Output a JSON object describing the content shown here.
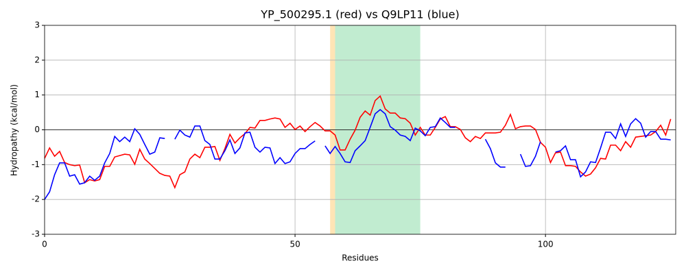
{
  "chart_data": {
    "type": "line",
    "title": "YP_500295.1 (red) vs Q9LP11 (blue)",
    "x_label": "Residues",
    "y_label": "Hydropathy (kcal/mol)",
    "x": [
      0,
      1,
      2,
      3,
      4,
      5,
      6,
      7,
      8,
      9,
      10,
      11,
      12,
      13,
      14,
      15,
      16,
      17,
      18,
      19,
      20,
      21,
      22,
      23,
      24,
      25,
      26,
      27,
      28,
      29,
      30,
      31,
      32,
      33,
      34,
      35,
      36,
      37,
      38,
      39,
      40,
      41,
      42,
      43,
      44,
      45,
      46,
      47,
      48,
      49,
      50,
      51,
      52,
      53,
      54,
      55,
      56,
      57,
      58,
      59,
      60,
      61,
      62,
      63,
      64,
      65,
      66,
      67,
      68,
      69,
      70,
      71,
      72,
      73,
      74,
      75,
      76,
      77,
      78,
      79,
      80,
      81,
      82,
      83,
      84,
      85,
      86,
      87,
      88,
      89,
      90,
      91,
      92,
      93,
      94,
      95,
      96,
      97,
      98,
      99,
      100,
      101,
      102,
      103,
      104,
      105,
      106,
      107,
      108,
      109,
      110,
      111,
      112,
      113,
      114,
      115,
      116,
      117,
      118,
      119,
      120,
      121,
      122,
      123,
      124,
      125
    ],
    "series": [
      {
        "color": "#ff0000",
        "values": [
          -0.82,
          -0.52,
          -0.76,
          -0.62,
          -0.94,
          -1.0,
          -1.03,
          -1.01,
          -1.52,
          -1.43,
          -1.47,
          -1.43,
          -1.05,
          -1.05,
          -0.78,
          -0.74,
          -0.7,
          -0.72,
          -0.99,
          -0.56,
          -0.84,
          -0.97,
          -1.11,
          -1.25,
          -1.31,
          -1.33,
          -1.66,
          -1.29,
          -1.21,
          -0.84,
          -0.7,
          -0.8,
          -0.5,
          -0.5,
          -0.48,
          -0.88,
          -0.54,
          -0.13,
          -0.38,
          -0.23,
          -0.11,
          0.07,
          0.05,
          0.27,
          0.27,
          0.31,
          0.34,
          0.31,
          0.07,
          0.19,
          0.01,
          0.11,
          -0.05,
          0.09,
          0.21,
          0.11,
          -0.03,
          -0.03,
          -0.15,
          -0.58,
          -0.58,
          -0.27,
          -0.01,
          0.36,
          0.54,
          0.42,
          0.84,
          0.97,
          0.6,
          0.48,
          0.48,
          0.34,
          0.32,
          0.19,
          -0.15,
          0.07,
          -0.15,
          -0.15,
          0.07,
          0.31,
          0.38,
          0.09,
          0.09,
          0.01,
          -0.23,
          -0.34,
          -0.19,
          -0.25,
          -0.09,
          -0.09,
          -0.09,
          -0.07,
          0.13,
          0.44,
          0.03,
          0.09,
          0.11,
          0.11,
          0.01,
          -0.36,
          -0.5,
          -0.94,
          -0.66,
          -0.64,
          -1.03,
          -1.03,
          -1.05,
          -1.21,
          -1.33,
          -1.27,
          -1.09,
          -0.82,
          -0.84,
          -0.44,
          -0.44,
          -0.6,
          -0.34,
          -0.5,
          -0.21,
          -0.19,
          -0.17,
          -0.15,
          -0.05,
          0.13,
          -0.15,
          0.31
        ]
      },
      {
        "color": "#0000ff",
        "values": [
          -2.0,
          -1.78,
          -1.29,
          -0.95,
          -0.95,
          -1.33,
          -1.29,
          -1.56,
          -1.52,
          -1.33,
          -1.45,
          -1.33,
          -0.95,
          -0.68,
          -0.19,
          -0.34,
          -0.21,
          -0.34,
          0.03,
          -0.13,
          -0.42,
          -0.7,
          -0.64,
          -0.23,
          -0.25,
          null,
          -0.27,
          -0.01,
          -0.15,
          -0.21,
          0.11,
          0.11,
          -0.31,
          -0.42,
          -0.84,
          -0.84,
          -0.6,
          -0.29,
          -0.68,
          -0.52,
          -0.09,
          -0.07,
          -0.5,
          -0.64,
          -0.5,
          -0.52,
          -0.97,
          -0.8,
          -0.97,
          -0.92,
          -0.68,
          -0.54,
          -0.54,
          -0.42,
          -0.32,
          null,
          -0.46,
          -0.68,
          -0.48,
          -0.68,
          -0.92,
          -0.94,
          -0.6,
          -0.46,
          -0.31,
          0.07,
          0.46,
          0.58,
          0.46,
          0.09,
          -0.01,
          -0.15,
          -0.19,
          -0.31,
          0.05,
          -0.03,
          -0.17,
          0.07,
          0.09,
          0.34,
          0.21,
          0.07,
          0.07,
          null,
          null,
          null,
          null,
          null,
          -0.27,
          -0.54,
          -0.95,
          -1.07,
          -1.07,
          null,
          null,
          -0.7,
          -1.05,
          -1.03,
          -0.76,
          -0.34,
          null,
          null,
          -0.64,
          -0.6,
          -0.46,
          -0.86,
          -0.86,
          -1.35,
          -1.21,
          -0.92,
          -0.94,
          -0.52,
          -0.07,
          -0.07,
          -0.25,
          0.17,
          -0.19,
          0.17,
          0.32,
          0.19,
          -0.21,
          -0.05,
          -0.05,
          -0.27,
          -0.27,
          -0.29
        ]
      }
    ],
    "spans": [
      {
        "x0": 57,
        "x1": 58,
        "color": "#ffe4b5"
      },
      {
        "x0": 58,
        "x1": 75,
        "color": "#c1ecd0"
      }
    ],
    "hline": 0,
    "xlim": [
      0,
      126
    ],
    "xticks": [
      0,
      50,
      100
    ],
    "ylim": [
      -3,
      3
    ],
    "yticks": [
      -3,
      -2,
      -1,
      0,
      1,
      2,
      3
    ],
    "grid": true
  }
}
